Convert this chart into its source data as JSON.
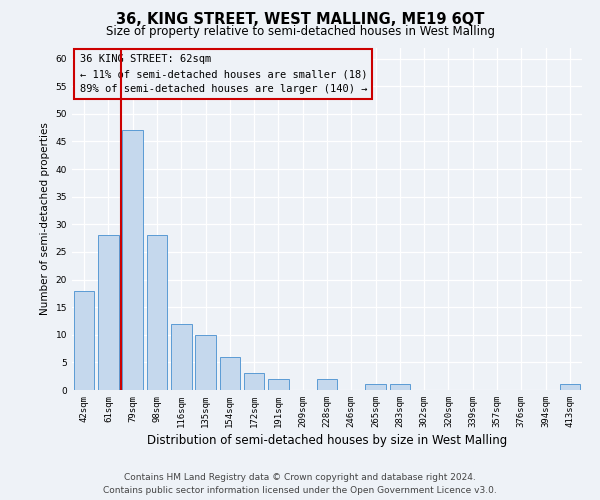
{
  "title": "36, KING STREET, WEST MALLING, ME19 6QT",
  "subtitle": "Size of property relative to semi-detached houses in West Malling",
  "xlabel": "Distribution of semi-detached houses by size in West Malling",
  "ylabel": "Number of semi-detached properties",
  "categories": [
    "42sqm",
    "61sqm",
    "79sqm",
    "98sqm",
    "116sqm",
    "135sqm",
    "154sqm",
    "172sqm",
    "191sqm",
    "209sqm",
    "228sqm",
    "246sqm",
    "265sqm",
    "283sqm",
    "302sqm",
    "320sqm",
    "339sqm",
    "357sqm",
    "376sqm",
    "394sqm",
    "413sqm"
  ],
  "values": [
    18,
    28,
    47,
    28,
    12,
    10,
    6,
    3,
    2,
    0,
    2,
    0,
    1,
    1,
    0,
    0,
    0,
    0,
    0,
    0,
    1
  ],
  "bar_color": "#c5d8ed",
  "bar_edge_color": "#5b9bd5",
  "vline_color": "#cc0000",
  "annotation_box_text": "36 KING STREET: 62sqm\n← 11% of semi-detached houses are smaller (18)\n89% of semi-detached houses are larger (140) →",
  "ylim": [
    0,
    62
  ],
  "yticks": [
    0,
    5,
    10,
    15,
    20,
    25,
    30,
    35,
    40,
    45,
    50,
    55,
    60
  ],
  "footer_line1": "Contains HM Land Registry data © Crown copyright and database right 2024.",
  "footer_line2": "Contains public sector information licensed under the Open Government Licence v3.0.",
  "bg_color": "#eef2f7",
  "grid_color": "#ffffff",
  "title_fontsize": 10.5,
  "subtitle_fontsize": 8.5,
  "xlabel_fontsize": 8.5,
  "ylabel_fontsize": 7.5,
  "tick_fontsize": 6.5,
  "annotation_fontsize": 7.5,
  "footer_fontsize": 6.5
}
